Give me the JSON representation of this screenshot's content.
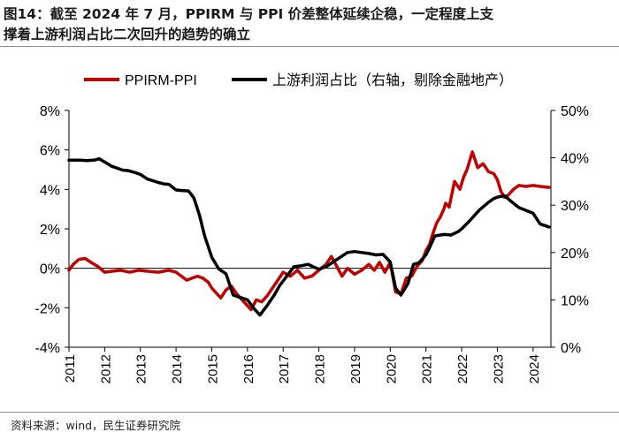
{
  "title": {
    "line1": "图14：截至 2024 年 7 月，PPIRM 与 PPI 价差整体延续企稳，一定程度上支",
    "line2": "撑着上游利润占比二次回升的趋势的确立"
  },
  "source": "资料来源：wind，民生证券研究院",
  "chart_data": {
    "type": "line",
    "xlabel": "",
    "ylabel_left": "",
    "ylabel_right": "",
    "x_ticks": [
      "2011",
      "2012",
      "2013",
      "2014",
      "2015",
      "2016",
      "2017",
      "2018",
      "2019",
      "2020",
      "2021",
      "2022",
      "2023",
      "2024"
    ],
    "x_range": [
      2011,
      2024.5
    ],
    "y_left": {
      "range": [
        -4,
        8
      ],
      "ticks": [
        -4,
        -2,
        0,
        2,
        4,
        6,
        8
      ],
      "tick_labels": [
        "-4%",
        "-2%",
        "0%",
        "2%",
        "4%",
        "6%",
        "8%"
      ]
    },
    "y_right": {
      "range": [
        0,
        50
      ],
      "ticks": [
        0,
        10,
        20,
        30,
        40,
        50
      ],
      "tick_labels": [
        "0%",
        "10%",
        "20%",
        "30%",
        "40%",
        "50%"
      ]
    },
    "legend_position": "top",
    "series": [
      {
        "name": "PPIRM-PPI",
        "axis": "left",
        "color": "#c00000",
        "x": [
          2011.0,
          2011.12,
          2011.28,
          2011.45,
          2011.62,
          2011.8,
          2012.0,
          2012.2,
          2012.45,
          2012.7,
          2012.95,
          2013.2,
          2013.5,
          2013.8,
          2014.0,
          2014.15,
          2014.3,
          2014.45,
          2014.6,
          2014.75,
          2014.9,
          2015.0,
          2015.1,
          2015.25,
          2015.4,
          2015.55,
          2015.7,
          2015.85,
          2016.0,
          2016.1,
          2016.25,
          2016.4,
          2016.55,
          2016.7,
          2016.85,
          2017.0,
          2017.2,
          2017.4,
          2017.6,
          2017.8,
          2018.0,
          2018.2,
          2018.35,
          2018.5,
          2018.65,
          2018.8,
          2019.0,
          2019.2,
          2019.4,
          2019.55,
          2019.7,
          2019.85,
          2020.0,
          2020.15,
          2020.3,
          2020.45,
          2020.6,
          2020.75,
          2020.9,
          2021.0,
          2021.1,
          2021.2,
          2021.3,
          2021.4,
          2021.5,
          2021.55,
          2021.65,
          2021.8,
          2021.95,
          2022.05,
          2022.15,
          2022.3,
          2022.45,
          2022.6,
          2022.75,
          2022.9,
          2023.0,
          2023.1,
          2023.2,
          2023.3,
          2023.45,
          2023.6,
          2023.8,
          2024.0,
          2024.2,
          2024.45
        ],
        "values": [
          -0.1,
          0.2,
          0.45,
          0.5,
          0.3,
          0.1,
          -0.2,
          -0.15,
          -0.1,
          -0.2,
          -0.1,
          -0.15,
          -0.2,
          -0.1,
          -0.2,
          -0.4,
          -0.6,
          -0.5,
          -0.4,
          -0.5,
          -0.7,
          -1.0,
          -1.2,
          -1.5,
          -1.1,
          -0.9,
          -1.3,
          -1.6,
          -1.9,
          -2.1,
          -1.6,
          -1.7,
          -1.4,
          -1.0,
          -0.6,
          -0.2,
          -0.4,
          -0.1,
          -0.5,
          -0.4,
          -0.1,
          0.2,
          0.6,
          0.1,
          -0.4,
          0.0,
          -0.3,
          -0.1,
          0.2,
          -0.1,
          0.3,
          -0.2,
          0.3,
          -1.2,
          -1.3,
          -0.5,
          -0.4,
          0.1,
          0.4,
          0.9,
          1.2,
          1.8,
          2.3,
          2.6,
          3.0,
          3.3,
          3.1,
          4.4,
          4.0,
          4.6,
          5.0,
          5.9,
          5.1,
          5.3,
          4.9,
          4.8,
          4.5,
          3.9,
          3.6,
          3.7,
          4.0,
          4.2,
          4.15,
          4.2,
          4.15,
          4.1
        ]
      },
      {
        "name": "上游利润占比（右轴，剔除金融地产）",
        "axis": "right",
        "color": "#000000",
        "x": [
          2011.0,
          2011.3,
          2011.5,
          2011.7,
          2011.85,
          2012.0,
          2012.2,
          2012.5,
          2012.65,
          2012.8,
          2013.0,
          2013.2,
          2013.5,
          2013.65,
          2013.8,
          2014.0,
          2014.15,
          2014.35,
          2014.5,
          2014.65,
          2014.8,
          2015.0,
          2015.2,
          2015.4,
          2015.6,
          2015.8,
          2016.0,
          2016.1,
          2016.2,
          2016.35,
          2016.55,
          2016.75,
          2016.9,
          2017.0,
          2017.3,
          2017.5,
          2017.7,
          2017.9,
          2018.0,
          2018.2,
          2018.4,
          2018.6,
          2018.8,
          2019.0,
          2019.2,
          2019.4,
          2019.6,
          2019.8,
          2020.0,
          2020.15,
          2020.3,
          2020.5,
          2020.65,
          2020.8,
          2021.0,
          2021.1,
          2021.25,
          2021.5,
          2021.7,
          2021.9,
          2022.0,
          2022.2,
          2022.5,
          2022.75,
          2022.9,
          2023.0,
          2023.2,
          2023.4,
          2023.6,
          2023.8,
          2024.0,
          2024.2,
          2024.45
        ],
        "values": [
          39.5,
          39.5,
          39.4,
          39.5,
          39.8,
          39.1,
          38.2,
          37.4,
          37.3,
          37.0,
          36.5,
          35.5,
          34.8,
          34.5,
          34.4,
          33.2,
          33.1,
          33.0,
          31.5,
          28.0,
          23.5,
          19.0,
          16.5,
          15.5,
          11.0,
          10.5,
          10.0,
          9.0,
          8.0,
          6.8,
          8.8,
          11.0,
          13.0,
          14.0,
          17.0,
          17.2,
          17.5,
          16.8,
          16.5,
          17.0,
          18.0,
          19.0,
          20.0,
          20.2,
          20.0,
          19.8,
          19.5,
          19.6,
          18.0,
          12.5,
          11.0,
          13.5,
          17.5,
          17.8,
          19.5,
          21.0,
          23.5,
          23.8,
          23.7,
          24.4,
          25.0,
          26.5,
          29.0,
          30.6,
          31.4,
          31.7,
          32.0,
          30.7,
          29.5,
          28.9,
          28.3,
          26.0,
          25.4
        ]
      }
    ]
  }
}
